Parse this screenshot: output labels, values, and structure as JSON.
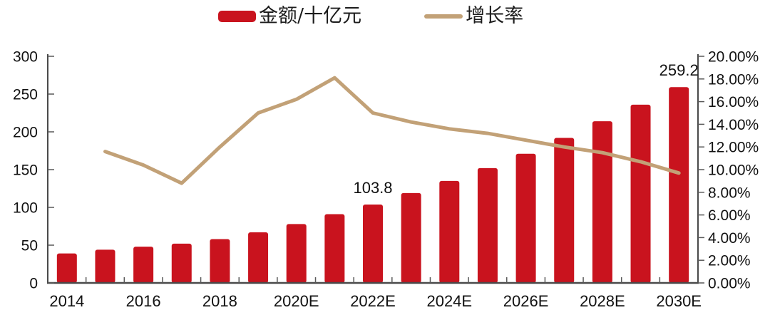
{
  "chart_data": {
    "type": "bar",
    "subtype": "combo-bar-line-dual-axis",
    "title": "",
    "categories": [
      "2014",
      "2015",
      "2016",
      "2017",
      "2018",
      "2019",
      "2020E",
      "2021E",
      "2022E",
      "2023E",
      "2024E",
      "2025E",
      "2026E",
      "2027E",
      "2028E",
      "2029E",
      "2030E"
    ],
    "x_axis": {
      "labeled_every": 2,
      "shown_tick_labels": [
        "2014",
        "2016",
        "2018",
        "2020E",
        "2022E",
        "2024E",
        "2026E",
        "2028E",
        "2030E"
      ]
    },
    "left_axis": {
      "min": 0,
      "max": 300,
      "step": 50,
      "tick_labels": [
        "0",
        "50",
        "100",
        "150",
        "200",
        "250",
        "300"
      ]
    },
    "right_axis": {
      "min": 0,
      "max": 20,
      "step": 2,
      "tick_labels": [
        "0.00%",
        "2.00%",
        "4.00%",
        "6.00%",
        "8.00%",
        "10.00%",
        "12.00%",
        "14.00%",
        "16.00%",
        "18.00%",
        "20.00%"
      ]
    },
    "series": [
      {
        "name": "金额/十亿元",
        "type": "bar",
        "axis": "left",
        "color": "#C9131E",
        "values": [
          39,
          44,
          48,
          52,
          58,
          67,
          78,
          91,
          103.8,
          119,
          135,
          152,
          171,
          192,
          214,
          236,
          259.2
        ]
      },
      {
        "name": "增长率",
        "type": "line",
        "axis": "right",
        "color": "#C2A177",
        "values": [
          null,
          11.6,
          10.4,
          8.8,
          12.0,
          15.0,
          16.2,
          18.1,
          15.0,
          14.2,
          13.6,
          13.2,
          12.6,
          12.0,
          11.5,
          10.7,
          9.7
        ]
      }
    ],
    "data_labels": [
      {
        "category_index": 8,
        "text": "103.8"
      },
      {
        "category_index": 16,
        "text": "259.2"
      }
    ],
    "legend": {
      "position": "top",
      "items": [
        {
          "label": "金额/十亿元",
          "swatch": "bar",
          "color": "#C9131E"
        },
        {
          "label": "增长率",
          "swatch": "line",
          "color": "#C2A177"
        }
      ]
    },
    "grid": "off"
  },
  "colors": {
    "bar": "#C9131E",
    "line": "#C2A177",
    "axis": "#4a4a4a",
    "tick": "#595959",
    "text": "#111111"
  }
}
